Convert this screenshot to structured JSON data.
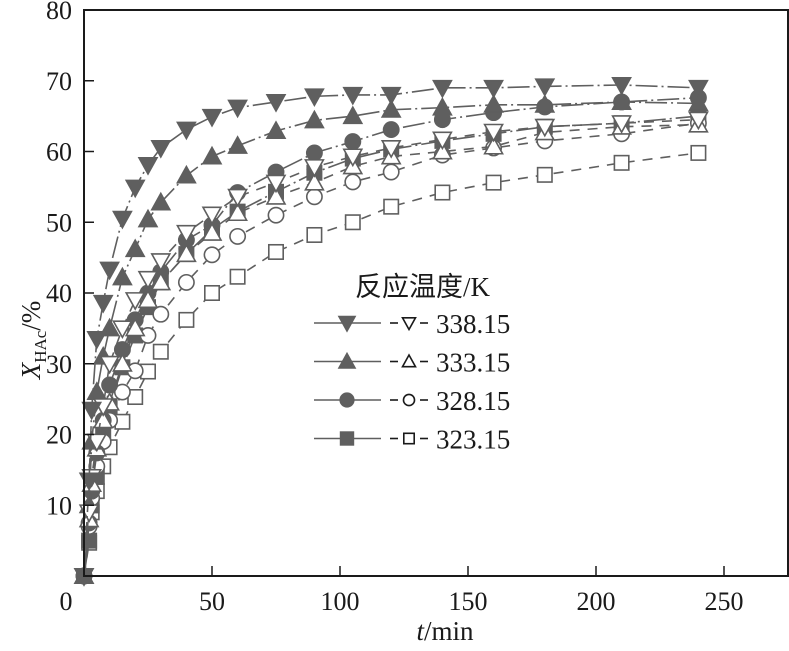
{
  "chart_data": {
    "type": "line",
    "xlabel": {
      "var": "t",
      "unit": "/min"
    },
    "ylabel": {
      "var": "X",
      "sub": "HAc",
      "unit": "/%"
    },
    "xlim": [
      0,
      275
    ],
    "ylim": [
      0,
      80
    ],
    "xticks": [
      0,
      50,
      100,
      150,
      200,
      250
    ],
    "yticks": [
      10,
      20,
      30,
      40,
      50,
      60,
      70,
      80
    ],
    "grid": false,
    "legend": {
      "title": "反应温度/K",
      "placement": "center-left"
    },
    "x": [
      0,
      2,
      3,
      5,
      7.5,
      10,
      15,
      20,
      25,
      30,
      40,
      50,
      60,
      75,
      90,
      105,
      120,
      140,
      160,
      180,
      210,
      240
    ],
    "series": [
      {
        "name": "338.15",
        "marker": "triangle-down",
        "filled": true,
        "values": [
          0,
          13.5,
          23.5,
          33.5,
          38.6,
          43.3,
          50.5,
          54.9,
          58.1,
          60.5,
          63.1,
          64.9,
          66.2,
          67.0,
          67.8,
          68.0,
          68.0,
          69.0,
          69.0,
          69.2,
          69.4,
          69.0
        ]
      },
      {
        "name": "338.15",
        "marker": "triangle-down",
        "filled": false,
        "values": [
          0,
          9,
          14,
          19,
          24,
          30,
          35,
          39,
          42,
          44.5,
          48.5,
          51.1,
          53.6,
          55.6,
          57.8,
          59.3,
          60.5,
          61.7,
          62.8,
          63.5,
          64.0,
          64.5
        ]
      },
      {
        "name": "333.15",
        "marker": "triangle-up",
        "filled": true,
        "values": [
          0,
          10,
          19,
          26,
          31,
          35,
          42.2,
          46.2,
          50.4,
          52.8,
          56.6,
          59.3,
          60.8,
          62.9,
          64.4,
          65.0,
          65.9,
          66.2,
          66.6,
          66.6,
          67.0,
          66.8
        ]
      },
      {
        "name": "333.15",
        "marker": "triangle-up",
        "filled": false,
        "values": [
          0,
          8,
          13,
          18,
          22,
          24.5,
          30,
          35,
          39,
          41.5,
          45.5,
          48.5,
          51.3,
          53.6,
          55.6,
          57.9,
          59.3,
          60.0,
          60.7,
          62.7,
          63.5,
          63.8
        ]
      },
      {
        "name": "328.15",
        "marker": "circle",
        "filled": true,
        "values": [
          0,
          7.5,
          12,
          17.4,
          22,
          27,
          32,
          36.2,
          40.0,
          43.0,
          47.5,
          49.6,
          54.2,
          57.1,
          59.8,
          61.4,
          63.1,
          64.5,
          65.5,
          66.3,
          67.0,
          67.6
        ]
      },
      {
        "name": "328.15",
        "marker": "circle",
        "filled": false,
        "values": [
          0,
          7,
          11,
          15.5,
          19,
          22,
          26,
          29,
          34,
          37,
          41.5,
          45.4,
          48,
          51,
          53.6,
          55.7,
          57.1,
          59.5,
          60.5,
          61.5,
          62.5,
          64.0
        ]
      },
      {
        "name": "323.15",
        "marker": "square",
        "filled": true,
        "values": [
          0,
          5,
          10,
          14,
          20,
          24,
          29.5,
          34,
          38,
          41.5,
          45.5,
          49,
          51.5,
          54.3,
          57,
          59,
          60.3,
          61.5,
          62.5,
          63.5,
          64.0,
          65.0
        ]
      },
      {
        "name": "323.15",
        "marker": "square",
        "filled": false,
        "values": [
          0,
          4.7,
          9,
          12,
          15.5,
          18.2,
          21.8,
          25.3,
          28.9,
          31.7,
          36.2,
          40.0,
          42.3,
          45.8,
          48.2,
          50.0,
          52.2,
          54.2,
          55.6,
          56.7,
          58.4,
          59.8
        ]
      }
    ],
    "colors": {
      "marker": "#5f5f5f",
      "axis": "#1a1a1a"
    }
  }
}
